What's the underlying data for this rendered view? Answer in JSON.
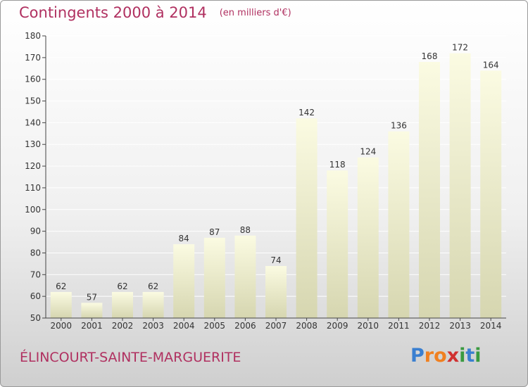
{
  "title": "Contingents 2000 à 2014",
  "subtitle": "(en milliers d'€)",
  "city": "ÉLINCOURT-SAINTE-MARGUERITE",
  "logo": {
    "letters": [
      "P",
      "r",
      "o",
      "x",
      "i",
      "t",
      "i"
    ],
    "colors": [
      "#3a7fd0",
      "#f08020",
      "#f08020",
      "#d03030",
      "#3a9a40",
      "#3a7fd0",
      "#3a9a40"
    ]
  },
  "colors": {
    "accent": "#b03060",
    "bar_top": "#fbfbe2",
    "bar_bottom": "#d6d6b0",
    "grid": "#ffffff",
    "axis": "#444444"
  },
  "chart_data": {
    "type": "bar",
    "categories": [
      "2000",
      "2001",
      "2002",
      "2003",
      "2004",
      "2005",
      "2006",
      "2007",
      "2008",
      "2009",
      "2010",
      "2011",
      "2012",
      "2013",
      "2014"
    ],
    "values": [
      62,
      57,
      62,
      62,
      84,
      87,
      88,
      74,
      142,
      118,
      124,
      136,
      168,
      172,
      164
    ],
    "ylim": [
      50,
      180
    ],
    "yticks": [
      50,
      60,
      70,
      80,
      90,
      100,
      110,
      120,
      130,
      140,
      150,
      160,
      170,
      180
    ],
    "grid": true,
    "data_labels": true
  }
}
